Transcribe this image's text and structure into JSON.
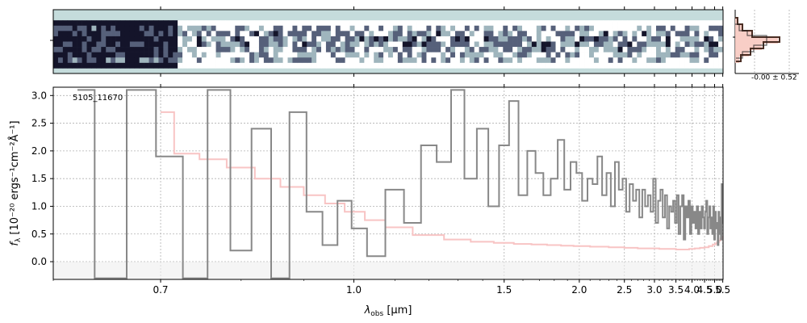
{
  "chart_data": {
    "type": "line",
    "object_label": "5105_11670",
    "xlabel": "λ",
    "xlabel_sub": "obs",
    "xlabel_unit": " [μm]",
    "ylabel": "f",
    "ylabel_sub": "λ",
    "ylabel_unit": " [10⁻²⁰ ergs⁻¹cm⁻²Å⁻¹]",
    "xscale": "reciprocal",
    "xlim": [
      0.6,
      5.52
    ],
    "ylim": [
      -0.32,
      3.15
    ],
    "x_ticks": [
      0.7,
      1.0,
      1.5,
      2.0,
      2.5,
      3.0,
      3.5,
      4.0,
      4.5,
      5.0,
      5.5
    ],
    "x_tick_labels": [
      "0.7",
      "1.0",
      "1.5",
      "2.0",
      "2.5",
      "3.0",
      "3.5",
      "4.0",
      "4.5",
      "5.0",
      "5.5"
    ],
    "y_ticks": [
      0.0,
      0.5,
      1.0,
      1.5,
      2.0,
      2.5,
      3.0
    ],
    "y_tick_labels": [
      "0.0",
      "0.5",
      "1.0",
      "1.5",
      "2.0",
      "2.5",
      "3.0"
    ],
    "grid": true,
    "histogram_label": "-0.00 ± 0.52",
    "colors": {
      "flux": "#888888",
      "error": "#f8c4c4",
      "grid": "#b0b0b0",
      "twod_bg": "#c5dcdc",
      "twod_dark": "#1a1a2e",
      "hist_line": "#4a2e24",
      "hist_fill": "#f7c9c0",
      "hist_bg_line": "#222222"
    },
    "series": [
      {
        "role": "flux",
        "x": [
          0.62,
          0.65,
          0.68,
          0.71,
          0.74,
          0.77,
          0.8,
          0.83,
          0.86,
          0.89,
          0.92,
          0.95,
          0.98,
          1.01,
          1.05,
          1.1,
          1.15,
          1.2,
          1.25,
          1.3,
          1.35,
          1.4,
          1.45,
          1.5,
          1.55,
          1.6,
          1.65,
          1.7,
          1.75,
          1.8,
          1.85,
          1.9,
          1.95,
          2.0,
          2.05,
          2.1,
          2.15,
          2.2,
          2.25,
          2.3,
          2.35,
          2.4,
          2.45,
          2.5,
          2.55,
          2.6,
          2.65,
          2.7,
          2.75,
          2.8,
          2.85,
          2.9,
          2.95,
          3.0,
          3.05,
          3.1,
          3.15,
          3.2,
          3.25,
          3.3,
          3.35,
          3.4,
          3.45,
          3.5,
          3.55,
          3.6,
          3.65,
          3.7,
          3.75,
          3.8,
          3.85,
          3.9,
          3.95,
          4.0,
          4.05,
          4.1,
          4.15,
          4.2,
          4.25,
          4.3,
          4.35,
          4.4,
          4.45,
          4.5,
          4.55,
          4.6,
          4.65,
          4.7,
          4.75,
          4.8,
          4.85,
          4.9,
          4.95,
          5.0,
          5.05,
          5.1,
          5.15,
          5.2,
          5.25,
          5.3,
          5.35,
          5.4,
          5.45,
          5.5
        ],
        "y": [
          3.1,
          -0.3,
          3.1,
          1.9,
          -0.3,
          3.1,
          0.2,
          2.4,
          -0.3,
          2.7,
          0.9,
          0.3,
          1.1,
          0.6,
          0.1,
          1.3,
          0.7,
          2.1,
          1.8,
          3.1,
          1.5,
          2.4,
          1.0,
          2.1,
          2.9,
          1.2,
          2.0,
          1.6,
          1.2,
          1.5,
          2.2,
          1.3,
          1.8,
          1.6,
          1.1,
          1.5,
          1.4,
          1.9,
          1.2,
          1.6,
          1.0,
          1.8,
          1.3,
          1.5,
          0.9,
          1.4,
          1.1,
          1.3,
          0.8,
          1.3,
          1.0,
          1.2,
          0.9,
          1.5,
          0.7,
          1.1,
          1.3,
          0.8,
          1.2,
          0.6,
          1.0,
          0.9,
          1.1,
          0.7,
          1.2,
          0.5,
          1.0,
          1.2,
          0.4,
          1.0,
          0.8,
          1.1,
          0.5,
          1.0,
          0.7,
          0.9,
          0.6,
          1.0,
          0.5,
          0.9,
          0.6,
          1.0,
          0.8,
          0.6,
          0.9,
          1.1,
          0.5,
          0.8,
          1.0,
          0.6,
          0.8,
          0.5,
          1.0,
          0.4,
          0.9,
          0.6,
          0.7,
          0.3,
          0.9,
          0.5,
          0.8,
          0.4,
          1.4,
          0.7
        ]
      },
      {
        "role": "error",
        "x": [
          0.7,
          0.73,
          0.76,
          0.8,
          0.84,
          0.88,
          0.92,
          0.96,
          1.0,
          1.05,
          1.1,
          1.2,
          1.3,
          1.4,
          1.5,
          1.6,
          1.7,
          1.8,
          1.9,
          2.0,
          2.2,
          2.4,
          2.6,
          2.8,
          3.0,
          3.2,
          3.4,
          3.6,
          3.8,
          4.0,
          4.2,
          4.4,
          4.6,
          4.8,
          5.0,
          5.1,
          5.2,
          5.3,
          5.4,
          5.5
        ],
        "y": [
          2.7,
          1.95,
          1.85,
          1.7,
          1.5,
          1.35,
          1.2,
          1.05,
          0.9,
          0.75,
          0.62,
          0.48,
          0.4,
          0.36,
          0.34,
          0.32,
          0.31,
          0.3,
          0.29,
          0.28,
          0.27,
          0.26,
          0.25,
          0.24,
          0.24,
          0.23,
          0.23,
          0.22,
          0.22,
          0.23,
          0.24,
          0.25,
          0.26,
          0.28,
          0.31,
          0.33,
          0.35,
          0.38,
          0.42,
          0.45
        ]
      }
    ]
  }
}
